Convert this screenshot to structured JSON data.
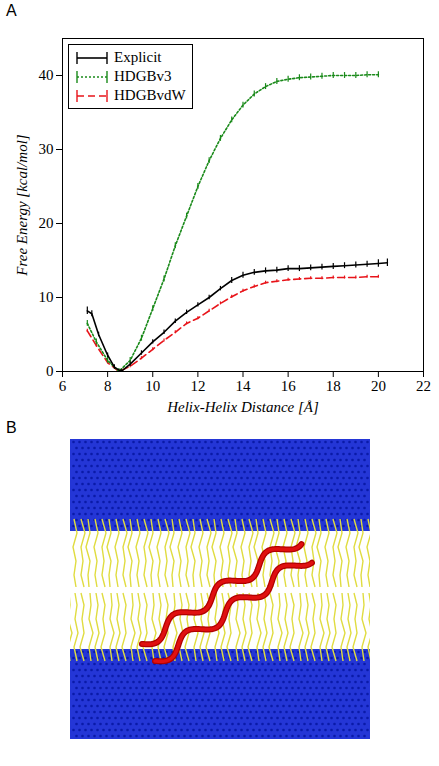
{
  "chart_data": {
    "type": "line",
    "panel_label": "A",
    "x_label": "Helix-Helix Distance [Å]",
    "y_label": "Free Energy [kcal/mol]",
    "xlim": [
      6,
      22
    ],
    "xticks": [
      6,
      8,
      10,
      12,
      14,
      16,
      18,
      20,
      22
    ],
    "ylim": [
      0,
      45
    ],
    "yticks": [
      0,
      10,
      20,
      30,
      40
    ],
    "grid": false,
    "legend": "upper left",
    "series": [
      {
        "name": "Explicit",
        "color": "#000000",
        "line_style": "solid",
        "x": [
          7.1,
          7.3,
          7.6,
          8.0,
          8.3,
          8.6,
          9.0,
          9.5,
          10,
          10.5,
          11,
          11.5,
          12,
          12.5,
          13,
          13.5,
          14,
          14.5,
          15,
          15.5,
          16,
          16.5,
          17,
          17.5,
          18,
          18.5,
          19,
          19.5,
          20,
          20.4
        ],
        "values": [
          8.2,
          7.8,
          5.0,
          2.2,
          0.6,
          0,
          1.0,
          2.5,
          4.0,
          5.3,
          6.8,
          8.0,
          9.0,
          10.0,
          11.2,
          12.3,
          13.0,
          13.4,
          13.6,
          13.7,
          13.9,
          13.9,
          14.0,
          14.1,
          14.2,
          14.3,
          14.4,
          14.5,
          14.6,
          14.7
        ],
        "errors": [
          0.5,
          0.4,
          0.3,
          0.3,
          0.3,
          0.3,
          0.3,
          0.3,
          0.3,
          0.3,
          0.3,
          0.3,
          0.3,
          0.3,
          0.3,
          0.4,
          0.4,
          0.4,
          0.4,
          0.4,
          0.4,
          0.4,
          0.4,
          0.4,
          0.4,
          0.4,
          0.4,
          0.4,
          0.5,
          0.5
        ]
      },
      {
        "name": "HDGBv3",
        "color": "#1a8a1a",
        "line_style": "dotted",
        "x": [
          7.1,
          7.5,
          8.0,
          8.5,
          9.0,
          9.5,
          10,
          10.5,
          11,
          11.5,
          12,
          12.5,
          13,
          13.5,
          14,
          14.5,
          15,
          15.5,
          16,
          16.5,
          17,
          17.5,
          18,
          18.5,
          19,
          19.5,
          20
        ],
        "values": [
          6.5,
          4.0,
          1.5,
          0,
          1.5,
          4.5,
          8.5,
          12.5,
          17.0,
          21.0,
          25.0,
          28.5,
          31.5,
          34.0,
          36.0,
          37.5,
          38.5,
          39.2,
          39.5,
          39.7,
          39.8,
          39.9,
          40.0,
          40.0,
          40.0,
          40.1,
          40.1
        ],
        "errors": [
          0.4,
          0.4,
          0.4,
          0.4,
          0.4,
          0.4,
          0.4,
          0.4,
          0.4,
          0.4,
          0.4,
          0.4,
          0.4,
          0.4,
          0.4,
          0.4,
          0.4,
          0.4,
          0.4,
          0.4,
          0.4,
          0.4,
          0.4,
          0.4,
          0.4,
          0.4,
          0.4
        ]
      },
      {
        "name": "HDGBvdW",
        "color": "#e8141a",
        "line_style": "dashed",
        "x": [
          7.1,
          7.5,
          8.0,
          8.5,
          9.0,
          9.5,
          10,
          10.5,
          11,
          11.5,
          12,
          12.5,
          13,
          13.5,
          14,
          14.5,
          15,
          15.5,
          16,
          16.5,
          17,
          17.5,
          18,
          18.5,
          19,
          19.5,
          20
        ],
        "values": [
          5.5,
          3.5,
          1.2,
          0,
          0.7,
          1.8,
          3.0,
          4.2,
          5.3,
          6.5,
          7.2,
          8.2,
          9.2,
          10.1,
          10.9,
          11.5,
          12.0,
          12.2,
          12.4,
          12.5,
          12.6,
          12.6,
          12.7,
          12.7,
          12.7,
          12.8,
          12.8
        ],
        "errors": [
          0.2,
          0.2,
          0.2,
          0.2,
          0.2,
          0.2,
          0.2,
          0.2,
          0.2,
          0.2,
          0.2,
          0.2,
          0.2,
          0.2,
          0.2,
          0.2,
          0.2,
          0.2,
          0.2,
          0.2,
          0.2,
          0.2,
          0.2,
          0.2,
          0.2,
          0.2,
          0.2
        ]
      }
    ]
  },
  "image_panel": {
    "label": "B"
  }
}
